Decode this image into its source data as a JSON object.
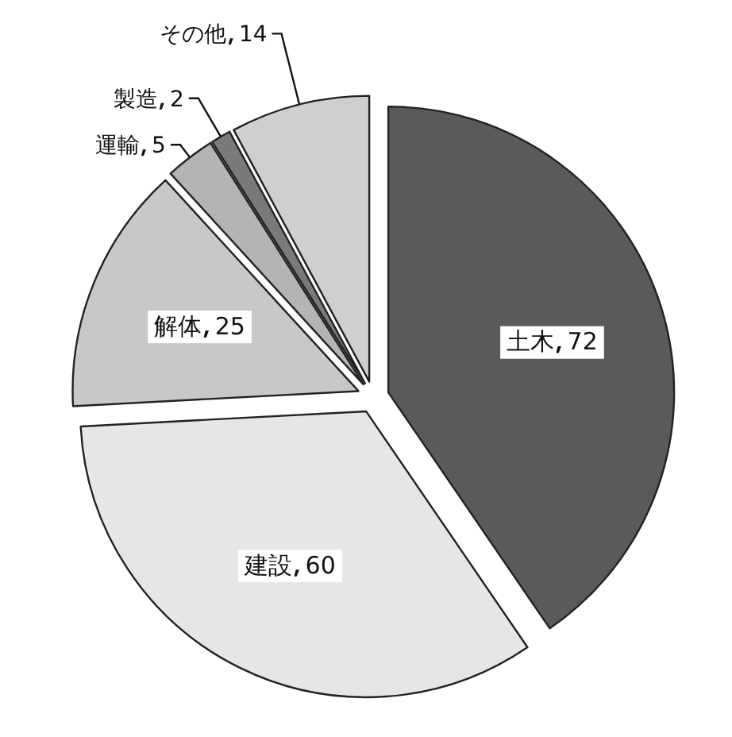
{
  "chart_data": {
    "type": "pie",
    "categories": [
      "土木",
      "建設",
      "解体",
      "運輸",
      "製造",
      "その他"
    ],
    "values": [
      72,
      60,
      25,
      5,
      2,
      14
    ],
    "colors": [
      "#5a5a5a",
      "#e6e6e6",
      "#c8c8c8",
      "#b4b4b4",
      "#7a7a7a",
      "#cfcfcf"
    ],
    "data_labels": true
  }
}
